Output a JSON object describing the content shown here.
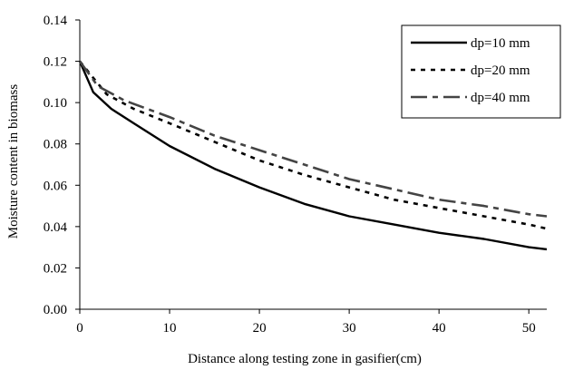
{
  "chart_data": {
    "type": "line",
    "title": "",
    "xlabel": "Distance along testing zone in gasifier(cm)",
    "ylabel": "Moisture content in biomass",
    "xlim": [
      0,
      52
    ],
    "ylim": [
      0,
      0.14
    ],
    "xticks": [
      0,
      10,
      20,
      30,
      40,
      50
    ],
    "xtick_labels": [
      "0",
      "10",
      "20",
      "30",
      "40",
      "50"
    ],
    "yticks": [
      0,
      0.02,
      0.04,
      0.06,
      0.08,
      0.1,
      0.12,
      0.14
    ],
    "ytick_labels": [
      "0.00",
      "0.02",
      "0.04",
      "0.06",
      "0.08",
      "0.10",
      "0.12",
      "0.14"
    ],
    "grid": false,
    "legend_position": "top-right",
    "series": [
      {
        "name": "dp=10 mm",
        "style": "solid",
        "color": "#000000",
        "x": [
          0,
          1.5,
          3.5,
          6,
          10,
          15,
          20,
          25,
          30,
          35,
          40,
          45,
          50,
          52
        ],
        "y": [
          0.12,
          0.105,
          0.097,
          0.09,
          0.079,
          0.068,
          0.059,
          0.051,
          0.045,
          0.041,
          0.037,
          0.034,
          0.03,
          0.029
        ]
      },
      {
        "name": "dp=20 mm",
        "style": "dotted",
        "color": "#000000",
        "x": [
          0,
          3,
          6,
          10,
          15,
          20,
          25,
          30,
          35,
          40,
          45,
          50,
          52
        ],
        "y": [
          0.12,
          0.104,
          0.097,
          0.09,
          0.081,
          0.072,
          0.065,
          0.059,
          0.053,
          0.049,
          0.045,
          0.041,
          0.039
        ]
      },
      {
        "name": "dp=40 mm",
        "style": "dashdot",
        "color": "#000000",
        "x": [
          0,
          2,
          5,
          10,
          15,
          20,
          25,
          30,
          35,
          40,
          45,
          50,
          52
        ],
        "y": [
          0.12,
          0.108,
          0.101,
          0.093,
          0.084,
          0.077,
          0.07,
          0.063,
          0.058,
          0.053,
          0.05,
          0.046,
          0.045
        ]
      }
    ]
  }
}
